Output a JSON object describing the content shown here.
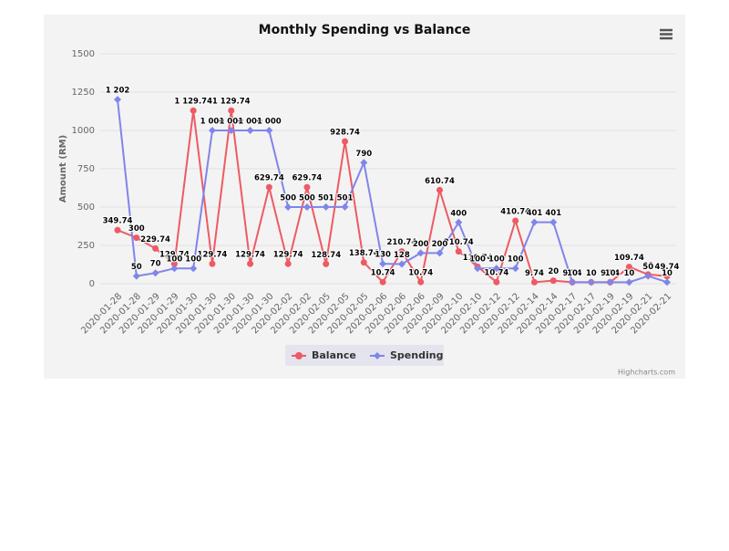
{
  "chart_data": {
    "type": "line",
    "title": "Monthly Spending vs Balance",
    "y_label": "Amount (RM)",
    "categories": [
      "2020-01-28",
      "2020-01-28",
      "2020-01-29",
      "2020-01-29",
      "2020-01-30",
      "2020-01-30",
      "2020-01-30",
      "2020-01-30",
      "2020-01-30",
      "2020-02-02",
      "2020-02-02",
      "2020-02-05",
      "2020-02-05",
      "2020-02-05",
      "2020-02-06",
      "2020-02-06",
      "2020-02-06",
      "2020-02-09",
      "2020-02-10",
      "2020-02-10",
      "2020-02-12",
      "2020-02-12",
      "2020-02-14",
      "2020-02-14",
      "2020-02-17",
      "2020-02-17",
      "2020-02-19",
      "2020-02-19",
      "2020-02-21",
      "2020-02-21"
    ],
    "series": [
      {
        "name": "Balance",
        "color": "#ee5a63",
        "marker": "circle",
        "values": [
          349.74,
          300,
          229.74,
          129.74,
          1129.74,
          129.74,
          1129.74,
          129.74,
          629.74,
          129.74,
          629.74,
          128.74,
          928.74,
          138.74,
          10.74,
          210.74,
          10.74,
          610.74,
          210.74,
          110.74,
          10.74,
          410.74,
          9.74,
          20,
          9.74,
          10,
          9.74,
          109.74,
          60,
          49.74
        ],
        "value_labels": [
          "349.74",
          "300",
          "229.74",
          "129.74",
          "1 129.74",
          "129.74",
          "1 129.74",
          "129.74",
          "629.74",
          "129.74",
          "629.74",
          "128.74",
          "928.74",
          "138.74",
          "10.74",
          "210.74",
          "10.74",
          "610.74",
          "210.74",
          "110.74",
          "10.74",
          "410.74",
          "9.74",
          "20",
          "9.74",
          "10",
          "9.74",
          "109.74",
          "60",
          "49.74"
        ]
      },
      {
        "name": "Spending",
        "color": "#8085e9",
        "marker": "diamond",
        "values": [
          1202,
          50,
          70,
          100,
          100,
          1000,
          1000,
          1000,
          1000,
          500,
          500,
          501,
          501,
          790,
          130,
          128,
          200,
          200,
          400,
          100,
          100,
          100,
          401,
          401,
          10,
          10,
          10,
          10,
          50,
          10
        ],
        "value_labels": [
          "1 202",
          "50",
          "70",
          "100",
          "100",
          "1 000",
          "1 000",
          "1 000",
          "1 000",
          "500",
          "500",
          "501",
          "501",
          "790",
          "130",
          "128",
          "200",
          "200",
          "400",
          "100",
          "100",
          "100",
          "401",
          "401",
          "10",
          "10",
          "10",
          "10",
          "50",
          "10"
        ]
      }
    ],
    "ylim": [
      0,
      1500
    ],
    "yticks": [
      0,
      250,
      500,
      750,
      1000,
      1250,
      1500
    ],
    "grid": true,
    "legend": "bottom",
    "credits": "Highcharts.com"
  }
}
